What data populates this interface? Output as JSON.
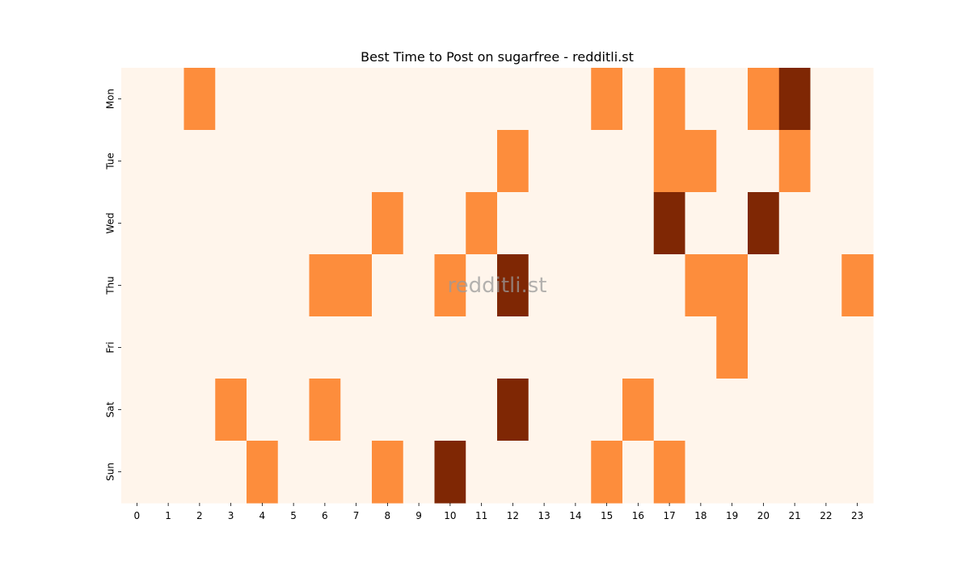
{
  "chart_data": {
    "type": "heatmap",
    "title": "Best Time to Post on sugarfree - redditli.st",
    "watermark": "redditli.st",
    "xlabel": "",
    "ylabel": "",
    "x_categories": [
      "0",
      "1",
      "2",
      "3",
      "4",
      "5",
      "6",
      "7",
      "8",
      "9",
      "10",
      "11",
      "12",
      "13",
      "14",
      "15",
      "16",
      "17",
      "18",
      "19",
      "20",
      "21",
      "22",
      "23"
    ],
    "y_categories": [
      "Mon",
      "Tue",
      "Wed",
      "Thu",
      "Fri",
      "Sat",
      "Sun"
    ],
    "values": [
      [
        0,
        0,
        1,
        0,
        0,
        0,
        0,
        0,
        0,
        0,
        0,
        0,
        0,
        0,
        0,
        1,
        0,
        1,
        0,
        0,
        1,
        2,
        0,
        0
      ],
      [
        0,
        0,
        0,
        0,
        0,
        0,
        0,
        0,
        0,
        0,
        0,
        0,
        1,
        0,
        0,
        0,
        0,
        1,
        1,
        0,
        0,
        1,
        0,
        0
      ],
      [
        0,
        0,
        0,
        0,
        0,
        0,
        0,
        0,
        1,
        0,
        0,
        1,
        0,
        0,
        0,
        0,
        0,
        2,
        0,
        0,
        2,
        0,
        0,
        0
      ],
      [
        0,
        0,
        0,
        0,
        0,
        0,
        1,
        1,
        0,
        0,
        1,
        0,
        2,
        0,
        0,
        0,
        0,
        0,
        1,
        1,
        0,
        0,
        0,
        1
      ],
      [
        0,
        0,
        0,
        0,
        0,
        0,
        0,
        0,
        0,
        0,
        0,
        0,
        0,
        0,
        0,
        0,
        0,
        0,
        0,
        1,
        0,
        0,
        0,
        0
      ],
      [
        0,
        0,
        0,
        1,
        0,
        0,
        1,
        0,
        0,
        0,
        0,
        0,
        2,
        0,
        0,
        0,
        1,
        0,
        0,
        0,
        0,
        0,
        0,
        0
      ],
      [
        0,
        0,
        0,
        0,
        1,
        0,
        0,
        0,
        1,
        0,
        2,
        0,
        0,
        0,
        0,
        1,
        0,
        1,
        0,
        0,
        0,
        0,
        0,
        0
      ]
    ],
    "colormap": {
      "0": "#fff5eb",
      "1": "#fd8d3c",
      "2": "#7f2704"
    },
    "colorbar": false,
    "grid": false
  }
}
